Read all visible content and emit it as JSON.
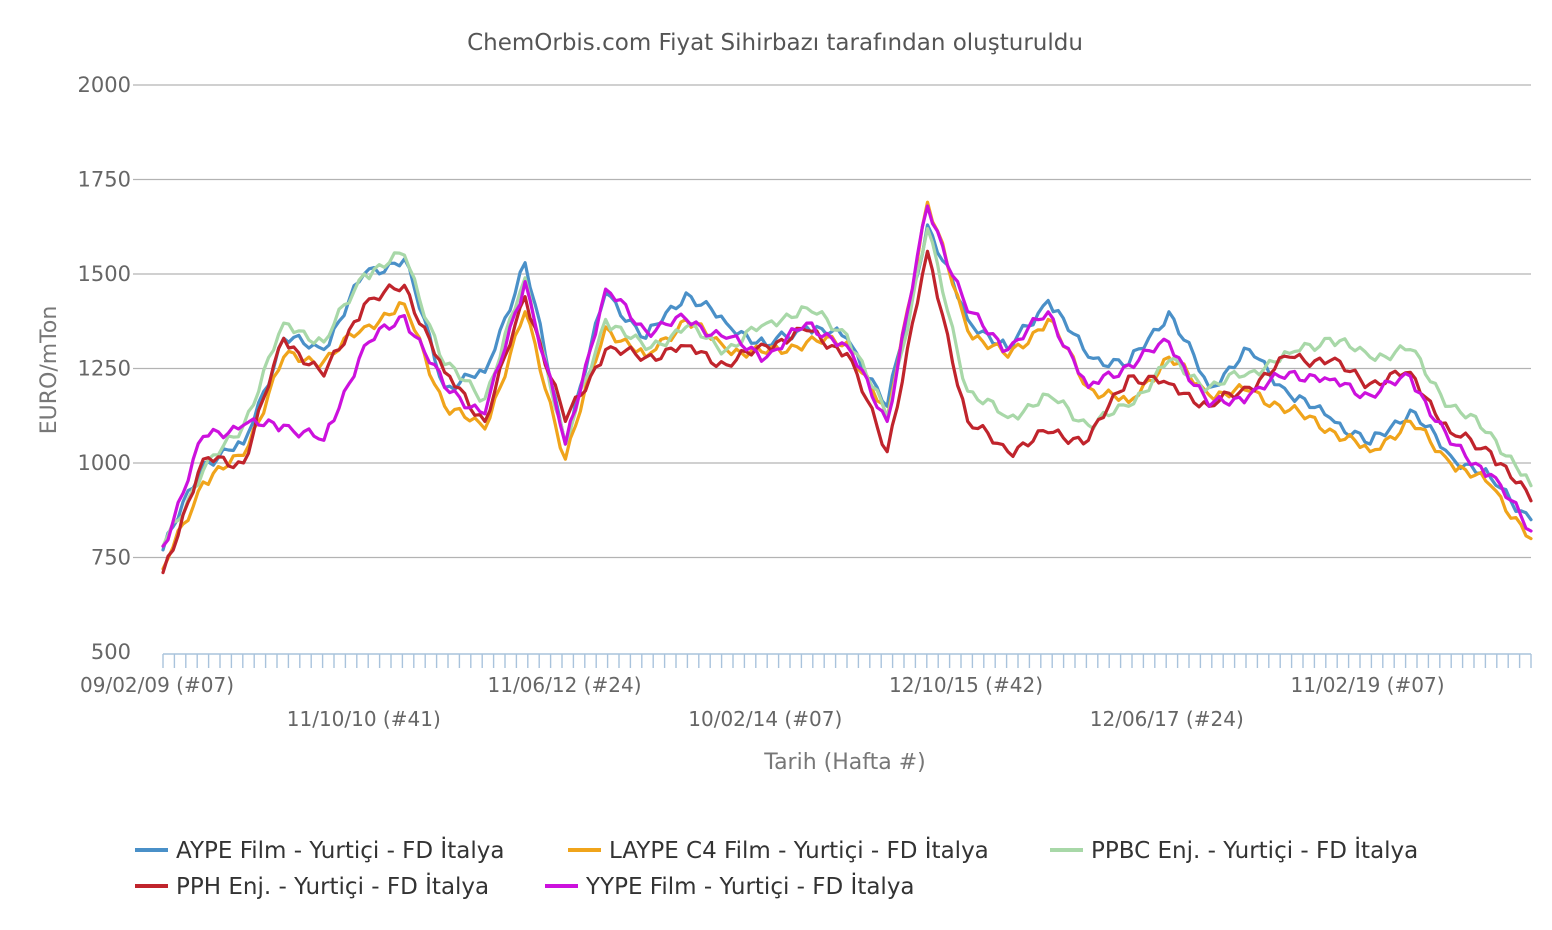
{
  "chart_data": {
    "type": "line",
    "title": "ChemOrbis.com Fiyat Sihirbazı tarafından oluşturuldu",
    "xlabel": "Tarih (Hafta #)",
    "ylabel": "EURO/mTon",
    "ylim": [
      500,
      2000
    ],
    "yticks": [
      "2000",
      "1750",
      "1500",
      "1250",
      "1000",
      "750",
      "500"
    ],
    "x_tick_labels": [
      "09/02/09 (#07)",
      "11/10/10 (#41)",
      "11/06/12 (#24)",
      "10/02/14 (#07)",
      "12/10/15 (#42)",
      "12/06/17 (#24)",
      "11/02/19 (#07)"
    ],
    "x": [
      "2009-02",
      "2009-06",
      "2009-10",
      "2010-02",
      "2010-06",
      "2010-10",
      "2011-02",
      "2011-06",
      "2011-10",
      "2012-02",
      "2012-06",
      "2012-10",
      "2013-02",
      "2013-06",
      "2013-10",
      "2014-02",
      "2014-06",
      "2014-10",
      "2015-02",
      "2015-06",
      "2015-10",
      "2016-02",
      "2016-06",
      "2016-10",
      "2017-02",
      "2017-06",
      "2017-10",
      "2018-02",
      "2018-06",
      "2018-10",
      "2019-02",
      "2019-06",
      "2019-10",
      "2020-02",
      "2020-06"
    ],
    "grid": true,
    "legend_position": "bottom",
    "series": [
      {
        "name": "AYPE Film - Yurtiçi  - FD İtalya",
        "color": "#4a90c8",
        "values": [
          770,
          1000,
          1050,
          1330,
          1300,
          1500,
          1540,
          1200,
          1240,
          1530,
          1050,
          1450,
          1330,
          1450,
          1370,
          1310,
          1360,
          1330,
          1150,
          1630,
          1380,
          1300,
          1430,
          1280,
          1260,
          1400,
          1200,
          1300,
          1180,
          1120,
          1050,
          1140,
          1020,
          960,
          850
        ]
      },
      {
        "name": "LAYPE C4 Film - Yurtiçi  - FD İtalya",
        "color": "#f0a41b",
        "values": [
          720,
          950,
          1020,
          1280,
          1270,
          1360,
          1420,
          1150,
          1090,
          1400,
          1010,
          1360,
          1280,
          1380,
          1300,
          1290,
          1320,
          1320,
          1120,
          1690,
          1350,
          1280,
          1380,
          1200,
          1160,
          1280,
          1180,
          1190,
          1140,
          1090,
          1030,
          1110,
          1000,
          940,
          800
        ]
      },
      {
        "name": "PPBC Enj. - Yurtiçi  - FD İtalya",
        "color": "#a8d8a8",
        "values": [
          780,
          980,
          1100,
          1370,
          1320,
          1500,
          1550,
          1260,
          1170,
          1490,
          1050,
          1380,
          1300,
          1360,
          1300,
          1370,
          1410,
          1340,
          1120,
          1620,
          1190,
          1120,
          1180,
          1100,
          1150,
          1270,
          1200,
          1240,
          1290,
          1330,
          1280,
          1300,
          1150,
          1080,
          940
        ]
      },
      {
        "name": "PPH Enj. - Yurtiçi  - FD İtalya",
        "color": "#c0242c",
        "values": [
          710,
          1010,
          1000,
          1330,
          1230,
          1420,
          1470,
          1240,
          1110,
          1440,
          1110,
          1300,
          1280,
          1310,
          1260,
          1310,
          1350,
          1290,
          1030,
          1560,
          1110,
          1030,
          1080,
          1060,
          1230,
          1210,
          1150,
          1200,
          1280,
          1270,
          1210,
          1240,
          1080,
          1030,
          900
        ]
      },
      {
        "name": "YYPE Film - Yurtiçi  - FD İtalya",
        "color": "#cc11dd",
        "values": [
          780,
          1070,
          1100,
          1100,
          1060,
          1310,
          1390,
          1200,
          1130,
          1480,
          1050,
          1460,
          1350,
          1380,
          1330,
          1280,
          1370,
          1310,
          1110,
          1680,
          1400,
          1300,
          1400,
          1200,
          1260,
          1320,
          1150,
          1180,
          1240,
          1220,
          1180,
          1230,
          1050,
          970,
          820
        ]
      }
    ]
  }
}
